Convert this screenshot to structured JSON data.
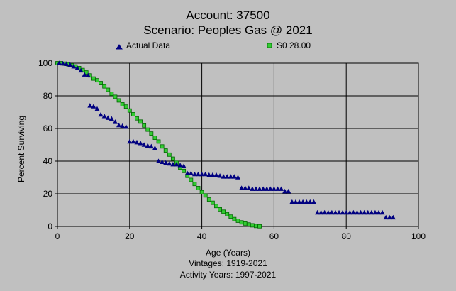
{
  "chart_data": {
    "type": "scatter",
    "title": "Account: 37500",
    "subtitle": "Scenario: Peoples Gas @ 2021",
    "xlabel": "Age (Years)",
    "ylabel": "Percent Surviving",
    "xlim": [
      0,
      100
    ],
    "ylim": [
      0,
      100
    ],
    "x_ticks": [
      0,
      20,
      40,
      60,
      80,
      100
    ],
    "y_ticks": [
      0,
      20,
      40,
      60,
      80,
      100
    ],
    "grid": true,
    "legend_position": "top",
    "footnotes": [
      "Vintages: 1919-2021",
      "Activity Years: 1997-2021"
    ],
    "series": [
      {
        "name": "Actual Data",
        "marker": "triangle",
        "color": "#000080",
        "points": [
          [
            0.5,
            100
          ],
          [
            1.5,
            99.8
          ],
          [
            2.5,
            99.5
          ],
          [
            3.5,
            99
          ],
          [
            4.5,
            98
          ],
          [
            5.5,
            97
          ],
          [
            6.5,
            95.5
          ],
          [
            7.5,
            93
          ],
          [
            8.5,
            92.5
          ],
          [
            9,
            74
          ],
          [
            10,
            73.5
          ],
          [
            11,
            72
          ],
          [
            12,
            68.5
          ],
          [
            13,
            67.5
          ],
          [
            14,
            66.5
          ],
          [
            15,
            66
          ],
          [
            16,
            64
          ],
          [
            17,
            62
          ],
          [
            18,
            61.5
          ],
          [
            19,
            61
          ],
          [
            20,
            52
          ],
          [
            21,
            52
          ],
          [
            22,
            51.5
          ],
          [
            23,
            51
          ],
          [
            24,
            50
          ],
          [
            25,
            49.5
          ],
          [
            26,
            49
          ],
          [
            27,
            48
          ],
          [
            28,
            40
          ],
          [
            29,
            39.5
          ],
          [
            30,
            39
          ],
          [
            31,
            38.5
          ],
          [
            32,
            38
          ],
          [
            33,
            38
          ],
          [
            34,
            37.5
          ],
          [
            35,
            37
          ],
          [
            36,
            32.5
          ],
          [
            37,
            32.5
          ],
          [
            38,
            32
          ],
          [
            39,
            32
          ],
          [
            40,
            32
          ],
          [
            41,
            32
          ],
          [
            42,
            31.5
          ],
          [
            43,
            31.5
          ],
          [
            44,
            31.5
          ],
          [
            45,
            31
          ],
          [
            46,
            30.5
          ],
          [
            47,
            30.5
          ],
          [
            48,
            30.5
          ],
          [
            49,
            30.5
          ],
          [
            50,
            30
          ],
          [
            51,
            23.5
          ],
          [
            52,
            23.5
          ],
          [
            53,
            23.5
          ],
          [
            54,
            23
          ],
          [
            55,
            23
          ],
          [
            56,
            23
          ],
          [
            57,
            23
          ],
          [
            58,
            23
          ],
          [
            59,
            23
          ],
          [
            60,
            23
          ],
          [
            61,
            23
          ],
          [
            62,
            23
          ],
          [
            63,
            21.5
          ],
          [
            64,
            21.5
          ],
          [
            65,
            15
          ],
          [
            66,
            15
          ],
          [
            67,
            15
          ],
          [
            68,
            15
          ],
          [
            69,
            15
          ],
          [
            70,
            15
          ],
          [
            71,
            15
          ],
          [
            72,
            8.5
          ],
          [
            73,
            8.5
          ],
          [
            74,
            8.5
          ],
          [
            75,
            8.5
          ],
          [
            76,
            8.5
          ],
          [
            77,
            8.5
          ],
          [
            78,
            8.5
          ],
          [
            79,
            8.5
          ],
          [
            80,
            8.5
          ],
          [
            81,
            8.5
          ],
          [
            82,
            8.5
          ],
          [
            83,
            8.5
          ],
          [
            84,
            8.5
          ],
          [
            85,
            8.5
          ],
          [
            86,
            8.5
          ],
          [
            87,
            8.5
          ],
          [
            88,
            8.5
          ],
          [
            89,
            8.5
          ],
          [
            90,
            8.5
          ],
          [
            91,
            5.5
          ],
          [
            92,
            5.5
          ],
          [
            93,
            5.5
          ]
        ]
      },
      {
        "name": "S0 28.00",
        "marker": "square",
        "color": "#33cc33",
        "points": [
          [
            0,
            100
          ],
          [
            1,
            100
          ],
          [
            2,
            99.7
          ],
          [
            3,
            99.3
          ],
          [
            4,
            98.7
          ],
          [
            5,
            98
          ],
          [
            6,
            97
          ],
          [
            7,
            95.8
          ],
          [
            8,
            94.3
          ],
          [
            9,
            92.5
          ],
          [
            10,
            90.6
          ],
          [
            11,
            89.5
          ],
          [
            12,
            87.8
          ],
          [
            13,
            85.8
          ],
          [
            14,
            83.7
          ],
          [
            15,
            81.3
          ],
          [
            16,
            79.4
          ],
          [
            17,
            77.2
          ],
          [
            18,
            74.8
          ],
          [
            19,
            73.4
          ],
          [
            20,
            71
          ],
          [
            21,
            68.7
          ],
          [
            22,
            66.2
          ],
          [
            23,
            64.2
          ],
          [
            24,
            61.8
          ],
          [
            25,
            59.3
          ],
          [
            26,
            56.9
          ],
          [
            27,
            54.3
          ],
          [
            28,
            52
          ],
          [
            29,
            49
          ],
          [
            30,
            46.5
          ],
          [
            31,
            44
          ],
          [
            32,
            41.5
          ],
          [
            33,
            39
          ],
          [
            34,
            36
          ],
          [
            35,
            34
          ],
          [
            36,
            31
          ],
          [
            37,
            28.5
          ],
          [
            38,
            26
          ],
          [
            39,
            23.5
          ],
          [
            40,
            21
          ],
          [
            41,
            19
          ],
          [
            42,
            16.5
          ],
          [
            43,
            14.5
          ],
          [
            44,
            12.5
          ],
          [
            45,
            10.5
          ],
          [
            46,
            9
          ],
          [
            47,
            7.5
          ],
          [
            48,
            6
          ],
          [
            49,
            4.5
          ],
          [
            50,
            3.5
          ],
          [
            51,
            2.5
          ],
          [
            52,
            1.8
          ],
          [
            53,
            1.2
          ],
          [
            54,
            0.7
          ],
          [
            55,
            0.3
          ],
          [
            56,
            0.1
          ]
        ]
      }
    ]
  }
}
